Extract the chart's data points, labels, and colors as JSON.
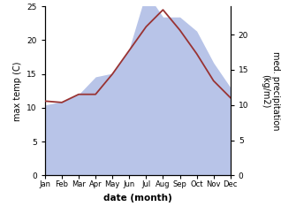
{
  "months": [
    "Jan",
    "Feb",
    "Mar",
    "Apr",
    "May",
    "Jun",
    "Jul",
    "Aug",
    "Sep",
    "Oct",
    "Nov",
    "Dec"
  ],
  "month_indices": [
    0,
    1,
    2,
    3,
    4,
    5,
    6,
    7,
    8,
    9,
    10,
    11
  ],
  "max_temp": [
    11.0,
    10.8,
    12.0,
    12.0,
    15.0,
    18.5,
    22.0,
    24.5,
    21.5,
    18.0,
    14.0,
    11.5
  ],
  "precipitation": [
    10.0,
    10.5,
    11.5,
    14.0,
    14.5,
    18.0,
    26.0,
    22.5,
    22.5,
    20.5,
    16.0,
    12.5
  ],
  "temp_color": "#993333",
  "precip_fill_color": "#b8c4e8",
  "left_ylabel": "max temp (C)",
  "right_ylabel": "med. precipitation\n(kg/m2)",
  "xlabel": "date (month)",
  "left_ylim": [
    0,
    25
  ],
  "right_ylim": [
    0,
    24
  ],
  "left_yticks": [
    0,
    5,
    10,
    15,
    20,
    25
  ],
  "right_yticks": [
    0,
    5,
    10,
    15,
    20
  ],
  "precip_scale_factor": 0.96
}
